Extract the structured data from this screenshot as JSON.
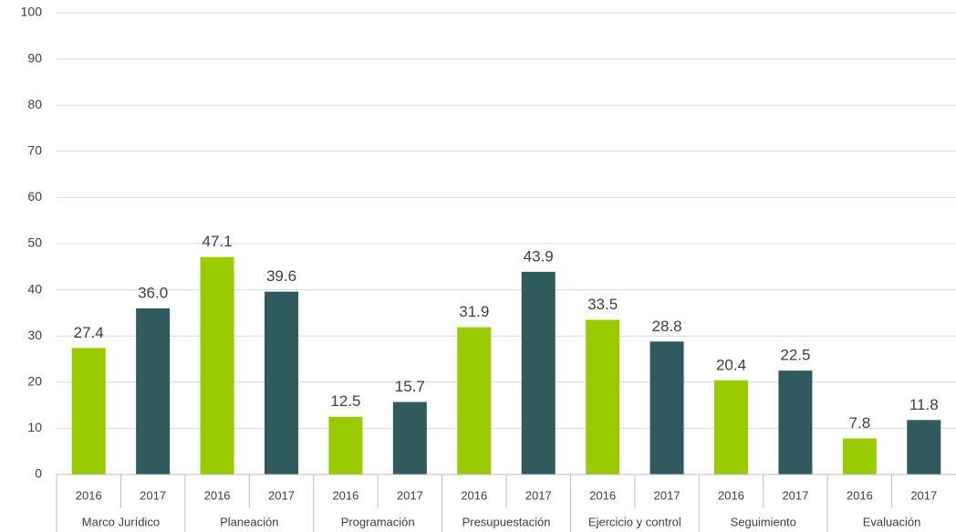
{
  "chart_data": {
    "type": "bar",
    "categories": [
      "Marco Jurídico",
      "Planeación",
      "Programación",
      "Presupuestación",
      "Ejercicio y control",
      "Seguimiento",
      "Evaluación"
    ],
    "series": [
      {
        "name": "2016",
        "color": "#99cc00",
        "values": [
          27.4,
          47.1,
          12.5,
          31.9,
          33.5,
          20.4,
          7.8
        ],
        "value_labels": [
          "27.4",
          "47.1",
          "12.5",
          "31.9",
          "33.5",
          "20.4",
          "7.8"
        ]
      },
      {
        "name": "2017",
        "color": "#2f5a5e",
        "values": [
          36,
          39.6,
          15.7,
          43.9,
          28.8,
          22.5,
          11.8
        ],
        "value_labels": [
          "36.0",
          "39.6",
          "15.7",
          "43.9",
          "28.8",
          "22.5",
          "11.8"
        ]
      }
    ],
    "ylim": [
      0,
      100
    ],
    "yticks": [
      0,
      10,
      20,
      30,
      40,
      50,
      60,
      70,
      80,
      90,
      100
    ],
    "grid": true
  }
}
